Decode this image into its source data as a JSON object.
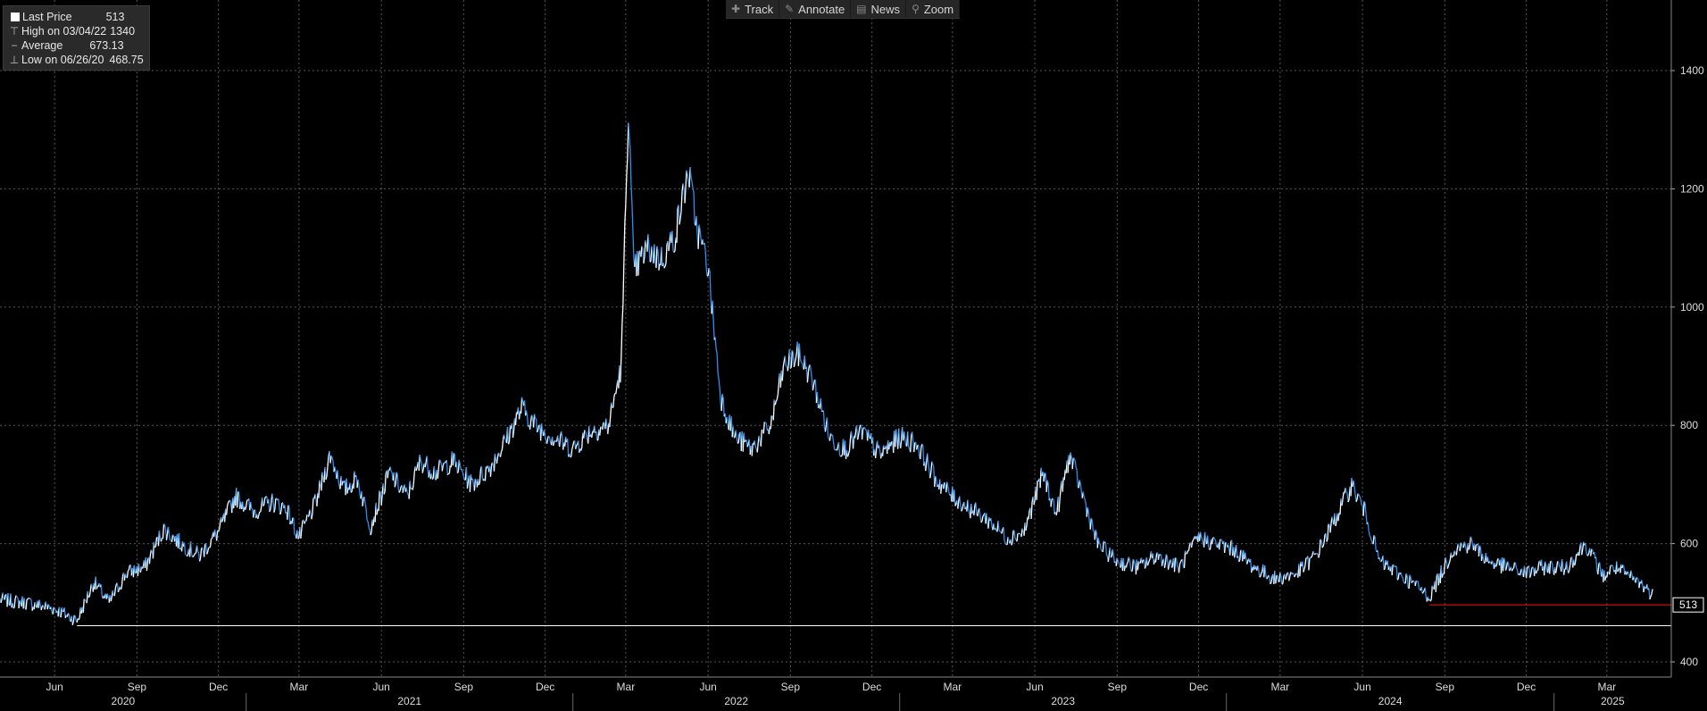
{
  "legend": {
    "last_price": {
      "label": "Last Price",
      "value": "513"
    },
    "high": {
      "label": "High on 03/04/22",
      "value": "1340"
    },
    "average": {
      "label": "Average",
      "value": "673.13"
    },
    "low": {
      "label": "Low on 06/26/20",
      "value": "468.75"
    }
  },
  "toolbar": {
    "track": "Track",
    "annotate": "Annotate",
    "news": "News",
    "zoom": "Zoom"
  },
  "colors": {
    "background": "#000000",
    "price_up": "#ffffff",
    "price_down": "#2f8ff0",
    "low_line": "#ffffff",
    "last_line": "#e01010",
    "grid": "#555555"
  },
  "chart_data": {
    "type": "line",
    "x_type": "date",
    "y_axis_position": "right",
    "ylim": [
      380,
      1480
    ],
    "yticks": [
      400,
      600,
      800,
      1000,
      1200,
      1400
    ],
    "month_ticks": [
      "Jun",
      "Sep",
      "Dec",
      "Mar",
      "Jun",
      "Sep",
      "Dec",
      "Mar",
      "Jun",
      "Sep",
      "Dec",
      "Mar",
      "Jun",
      "Sep",
      "Dec",
      "Mar",
      "Jun",
      "Sep",
      "Dec",
      "Mar"
    ],
    "year_labels": [
      "2020",
      "2021",
      "2022",
      "2023",
      "2024",
      "2025"
    ],
    "last_value_label": "513",
    "low_reference": 468.75,
    "last_reference": 513,
    "grid": true,
    "series": [
      {
        "x": [
          "2020-04-01",
          "2020-05-01",
          "2020-06-01",
          "2020-06-26",
          "2020-07-15",
          "2020-08-01",
          "2020-08-20",
          "2020-09-10",
          "2020-10-01",
          "2020-10-20",
          "2020-11-10",
          "2020-12-01",
          "2020-12-20",
          "2021-01-10",
          "2021-01-30",
          "2021-02-15",
          "2021-03-01",
          "2021-03-20",
          "2021-04-05",
          "2021-04-20",
          "2021-05-05",
          "2021-05-20",
          "2021-06-10",
          "2021-06-30",
          "2021-07-15",
          "2021-08-01",
          "2021-08-20",
          "2021-09-10",
          "2021-10-01",
          "2021-10-20",
          "2021-11-05",
          "2021-11-20",
          "2021-12-10",
          "2022-01-01",
          "2022-01-20",
          "2022-02-10",
          "2022-02-24",
          "2022-03-04",
          "2022-03-10",
          "2022-03-25",
          "2022-04-10",
          "2022-04-25",
          "2022-05-10",
          "2022-05-20",
          "2022-06-01",
          "2022-06-15",
          "2022-07-01",
          "2022-07-20",
          "2022-08-10",
          "2022-08-25",
          "2022-09-10",
          "2022-09-25",
          "2022-10-15",
          "2022-11-01",
          "2022-11-20",
          "2022-12-10",
          "2023-01-01",
          "2023-01-20",
          "2023-02-10",
          "2023-03-01",
          "2023-03-20",
          "2023-04-10",
          "2023-05-01",
          "2023-05-20",
          "2023-06-10",
          "2023-06-25",
          "2023-07-10",
          "2023-07-25",
          "2023-08-10",
          "2023-09-01",
          "2023-09-25",
          "2023-10-15",
          "2023-11-10",
          "2023-12-01",
          "2023-12-20",
          "2024-01-10",
          "2024-02-01",
          "2024-02-25",
          "2024-03-20",
          "2024-04-10",
          "2024-05-01",
          "2024-05-20",
          "2024-06-05",
          "2024-06-20",
          "2024-07-10",
          "2024-07-30",
          "2024-08-15",
          "2024-08-25",
          "2024-09-10",
          "2024-10-01",
          "2024-10-20",
          "2024-11-10",
          "2024-12-01",
          "2024-12-20",
          "2025-01-15",
          "2025-02-05",
          "2025-02-25",
          "2025-03-10",
          "2025-03-25",
          "2025-04-10",
          "2025-04-22"
        ],
        "y": [
          505,
          500,
          490,
          470,
          535,
          500,
          550,
          560,
          625,
          600,
          580,
          620,
          680,
          655,
          670,
          660,
          610,
          670,
          750,
          690,
          710,
          630,
          720,
          680,
          740,
          720,
          740,
          700,
          730,
          780,
          830,
          800,
          780,
          760,
          790,
          800,
          900,
          1340,
          1060,
          1100,
          1080,
          1120,
          1230,
          1130,
          1070,
          850,
          780,
          760,
          800,
          900,
          920,
          880,
          780,
          760,
          790,
          750,
          780,
          770,
          710,
          680,
          660,
          640,
          610,
          620,
          720,
          650,
          750,
          680,
          600,
          570,
          560,
          580,
          560,
          610,
          600,
          590,
          560,
          540,
          550,
          580,
          640,
          700,
          650,
          570,
          550,
          530,
          510,
          540,
          590,
          600,
          570,
          560,
          550,
          560,
          560,
          600,
          545,
          560,
          545,
          530,
          513
        ]
      }
    ]
  }
}
